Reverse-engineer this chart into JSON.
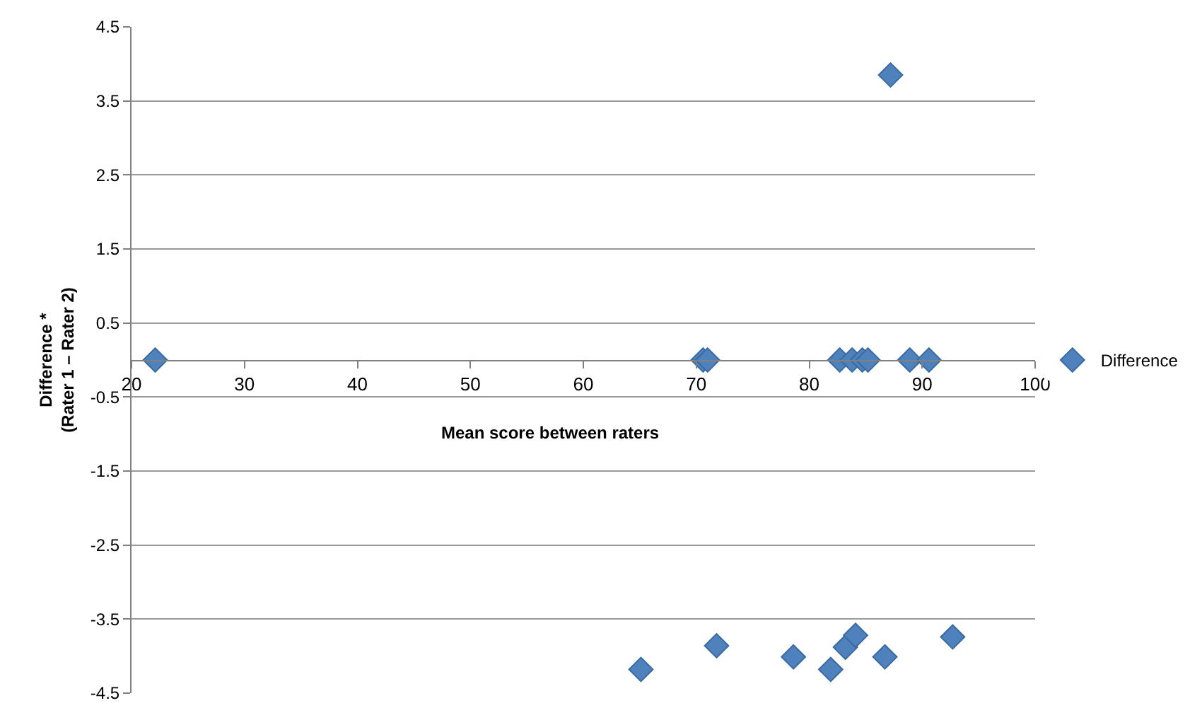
{
  "chart_data": {
    "type": "scatter",
    "xlabel": "Mean score between raters",
    "ylabel": "Difference *\n(Rater 1 – Rater 2)",
    "series": [
      {
        "name": "Difference",
        "color": "#4f81bd",
        "x": [
          22.1,
          70.6,
          71.0,
          82.7,
          83.8,
          84.7,
          85.2,
          88.9,
          90.6,
          87.2,
          65.1,
          71.8,
          78.6,
          81.9,
          83.2,
          84.1,
          86.7,
          92.7
        ],
        "values": [
          0,
          0,
          0,
          0,
          0,
          0,
          0,
          0,
          0,
          3.85,
          -4.18,
          -3.86,
          -4.01,
          -4.18,
          -3.88,
          -3.72,
          -4.01,
          -3.74
        ]
      }
    ],
    "xlim": [
      20,
      100
    ],
    "xticks": [
      20,
      30,
      40,
      50,
      60,
      70,
      80,
      90,
      100
    ],
    "ylim": [
      -4.5,
      4.5
    ],
    "yticks": [
      -4.5,
      -3.5,
      -2.5,
      -1.5,
      -0.5,
      0.5,
      1.5,
      2.5,
      3.5,
      4.5
    ],
    "grid": "y",
    "legend": "right",
    "marker": "diamond"
  }
}
